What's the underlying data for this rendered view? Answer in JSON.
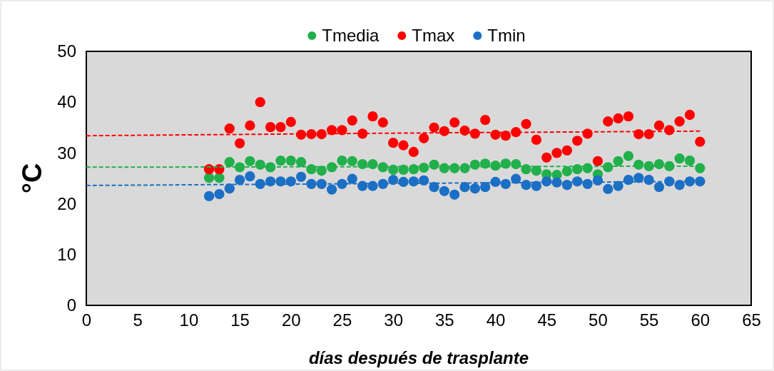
{
  "chart_data": {
    "type": "scatter",
    "xlabel": "días después de trasplante",
    "ylabel": "°C",
    "x": [
      12,
      13,
      14,
      15,
      16,
      17,
      18,
      19,
      20,
      21,
      22,
      23,
      24,
      25,
      26,
      27,
      28,
      29,
      30,
      31,
      32,
      33,
      34,
      35,
      36,
      37,
      38,
      39,
      40,
      41,
      42,
      43,
      44,
      45,
      46,
      47,
      48,
      49,
      50,
      51,
      52,
      53,
      54,
      55,
      56,
      57,
      58,
      59,
      60
    ],
    "xlim": [
      0,
      65
    ],
    "xticks": [
      0,
      5,
      10,
      15,
      20,
      25,
      30,
      35,
      40,
      45,
      50,
      55,
      60,
      65
    ],
    "ylim": [
      0,
      50
    ],
    "yticks": [
      0,
      10,
      20,
      30,
      40,
      50
    ],
    "legend": "top",
    "grid": false,
    "series": [
      {
        "name": "Tmedia",
        "marker": "circle",
        "color": "#21b04b",
        "values": [
          25.1,
          25.1,
          28.2,
          27.2,
          28.4,
          27.7,
          27.2,
          28.5,
          28.5,
          28.2,
          26.8,
          26.5,
          27.2,
          28.5,
          28.4,
          27.8,
          27.8,
          27.2,
          26.7,
          26.7,
          26.8,
          27.1,
          27.7,
          27,
          27,
          27,
          27.7,
          27.9,
          27.5,
          27.9,
          27.8,
          26.8,
          26.5,
          25.8,
          25.7,
          26.4,
          26.8,
          27,
          25.8,
          27.2,
          28.4,
          29.4,
          27.7,
          27.4,
          27.8,
          27.4,
          28.9,
          28.5,
          27
        ]
      },
      {
        "name": "Tmax",
        "marker": "circle",
        "color": "#ff0000",
        "values": [
          26.8,
          26.8,
          34.8,
          31.9,
          35.4,
          40,
          35.1,
          35.1,
          36.1,
          33.6,
          33.7,
          33.7,
          34.5,
          34.5,
          36.4,
          33.8,
          37.2,
          36,
          32,
          31.5,
          30.2,
          32.9,
          35,
          34.3,
          36,
          34.4,
          33.8,
          36.5,
          33.6,
          33.4,
          34.1,
          35.7,
          32.6,
          29.1,
          30,
          30.5,
          32.4,
          33.8,
          28.4,
          36.2,
          36.8,
          37.2,
          33.7,
          33.7,
          35.4,
          34.5,
          36.2,
          37.5,
          32.2
        ]
      },
      {
        "name": "Tmin",
        "marker": "circle",
        "color": "#1b6fc4",
        "values": [
          21.5,
          21.9,
          23,
          24.7,
          25.4,
          23.9,
          24.4,
          24.4,
          24.4,
          25.3,
          23.9,
          23.9,
          22.8,
          23.9,
          24.9,
          23.5,
          23.5,
          23.9,
          24.7,
          24.3,
          24.4,
          24.6,
          23.3,
          22.5,
          21.8,
          23.3,
          23,
          23.3,
          24.3,
          23.9,
          24.9,
          23.7,
          23.5,
          24.4,
          24.2,
          23.7,
          24.4,
          23.9,
          24.6,
          22.9,
          23.5,
          24.7,
          25.1,
          24.7,
          23.3,
          24.4,
          23.7,
          24.4,
          24.4
        ]
      },
      {
        "type": "line",
        "marker": "none",
        "line_style": "dashed",
        "color": "#21b04b",
        "x": [
          0,
          30,
          60
        ],
        "values": [
          27.2,
          27.3,
          27.4
        ]
      },
      {
        "type": "line",
        "marker": "none",
        "line_style": "dashed",
        "color": "#ff0000",
        "x": [
          0,
          30,
          60
        ],
        "values": [
          33.4,
          33.9,
          34.3
        ]
      },
      {
        "type": "line",
        "marker": "none",
        "line_style": "dashed",
        "color": "#1b6fc4",
        "x": [
          0,
          30,
          60
        ],
        "values": [
          23.6,
          24,
          24.4
        ]
      }
    ]
  }
}
